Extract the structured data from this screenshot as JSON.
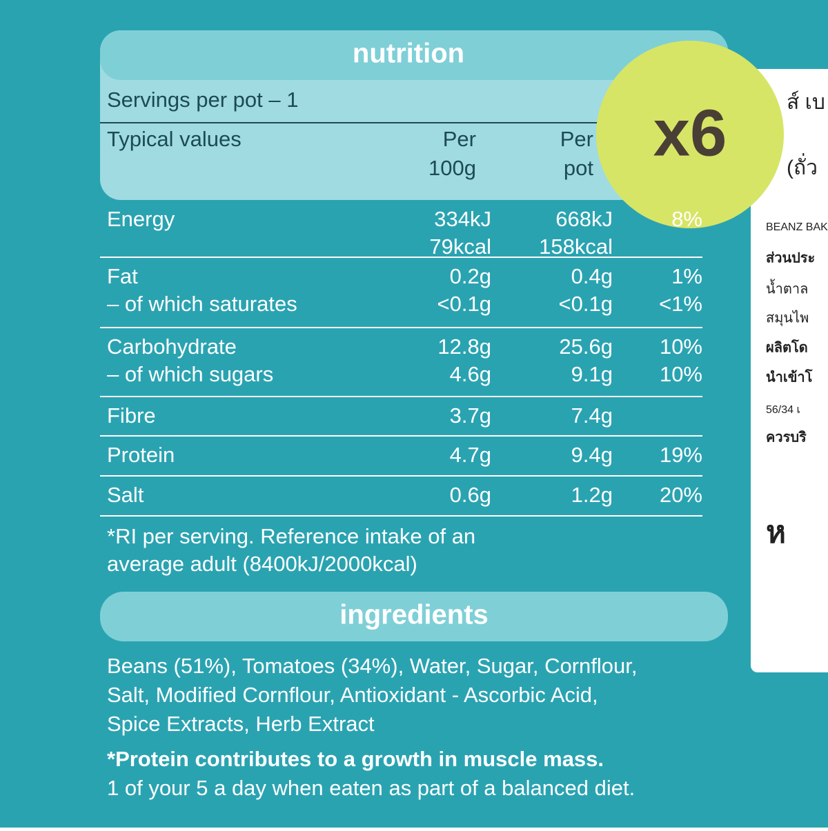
{
  "nutrition": {
    "title": "nutrition",
    "servings": "Servings per pot – 1",
    "header": [
      [
        "Typical values"
      ],
      [
        "Per",
        "100g"
      ],
      [
        "Per",
        "pot"
      ]
    ],
    "rows": [
      {
        "cells": [
          [
            "Energy"
          ],
          [
            "334kJ",
            "79kcal"
          ],
          [
            "668kJ",
            "158kcal"
          ],
          [
            "8%"
          ]
        ]
      },
      {
        "cells": [
          [
            "Fat",
            "– of which saturates"
          ],
          [
            "0.2g",
            "<0.1g"
          ],
          [
            "0.4g",
            "<0.1g"
          ],
          [
            "1%",
            "<1%"
          ]
        ]
      },
      {
        "cells": [
          [
            "Carbohydrate",
            "– of which sugars"
          ],
          [
            "12.8g",
            "4.6g"
          ],
          [
            "25.6g",
            "9.1g"
          ],
          [
            "10%",
            "10%"
          ]
        ]
      },
      {
        "cells": [
          [
            "Fibre"
          ],
          [
            "3.7g"
          ],
          [
            "7.4g"
          ]
        ]
      },
      {
        "cells": [
          [
            "Protein"
          ],
          [
            "4.7g"
          ],
          [
            "9.4g"
          ],
          [
            "19%"
          ]
        ]
      },
      {
        "cells": [
          [
            "Salt"
          ],
          [
            "0.6g"
          ],
          [
            "1.2g"
          ],
          [
            "20%"
          ]
        ]
      }
    ],
    "footnote": [
      "*RI per serving. Reference intake of an",
      "average adult (8400kJ/2000kcal)"
    ]
  },
  "ingredients": {
    "title": "ingredients",
    "lines": [
      "Beans (51%), Tomatoes (34%), Water, Sugar, Cornflour,",
      "Salt, Modified Cornflour, Antioxidant - Ascorbic Acid,",
      "Spice Extracts, Herb Extract"
    ],
    "claim": "*Protein contributes to a growth in muscle mass.",
    "note": "1 of your 5 a day when eaten as part of a balanced diet."
  },
  "badge": "x6",
  "sticker": [
    "ส์ เบ",
    "(ถั่ว",
    "BEANZ BAK",
    "ส่วนประ",
    "น้ำตาล",
    "สมุนไพ",
    "ผลิตโด",
    "นำเข้าโ",
    "56/34 เ",
    "ควรบริ",
    "ห"
  ]
}
